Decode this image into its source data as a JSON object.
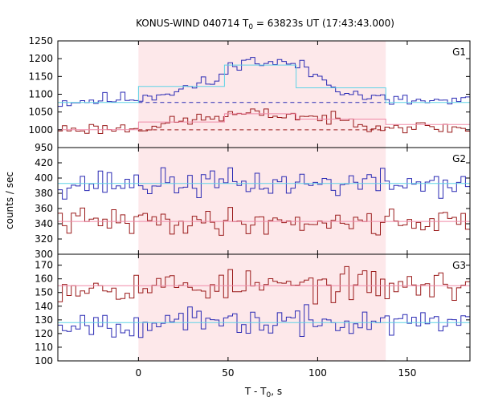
{
  "chart_data": {
    "type": "line",
    "title": "KONUS-WIND 040714 T",
    "title_sub": "0",
    "title_rest": " = 63823s UT (17:43:43.000)",
    "xlabel": "T - T",
    "xlabel_sub": "0",
    "xlabel_rest": ", s",
    "ylabel": "counts / sec",
    "xlim": [
      -45,
      185
    ],
    "xticks": [
      0,
      50,
      100,
      150
    ],
    "interval": {
      "start": 0,
      "end": 138,
      "color": "#fde8ea"
    },
    "colors": {
      "blue": "#2a2ab4",
      "red": "#9a1a1a",
      "cyan": "#5fd3e6",
      "pink": "#f08aa8"
    },
    "panels": [
      {
        "label": "G1",
        "ylim": [
          950,
          1250
        ],
        "yticks": [
          950,
          1000,
          1050,
          1100,
          1150,
          1200,
          1250
        ],
        "series": [
          {
            "color": "blue",
            "base": 1078,
            "noise": 14,
            "seed": 11,
            "profile": [
              [
                -45,
                1078
              ],
              [
                0,
                1090
              ],
              [
                20,
                1110
              ],
              [
                45,
                1140
              ],
              [
                55,
                1195
              ],
              [
                70,
                1190
              ],
              [
                88,
                1185
              ],
              [
                100,
                1150
              ],
              [
                120,
                1100
              ],
              [
                140,
                1082
              ],
              [
                185,
                1078
              ]
            ]
          },
          {
            "color": "red",
            "base": 1000,
            "noise": 12,
            "seed": 23,
            "profile": [
              [
                -45,
                1002
              ],
              [
                0,
                1005
              ],
              [
                25,
                1025
              ],
              [
                60,
                1045
              ],
              [
                90,
                1040
              ],
              [
                115,
                1025
              ],
              [
                140,
                1010
              ],
              [
                185,
                1003
              ]
            ]
          }
        ],
        "fits": [
          {
            "color": "cyan",
            "steps": [
              [
                -45,
                0,
                1077
              ],
              [
                0,
                48,
                1122
              ],
              [
                48,
                88,
                1182
              ],
              [
                88,
                138,
                1118
              ],
              [
                138,
                185,
                1077
              ]
            ]
          },
          {
            "color": "pink",
            "steps": [
              [
                -45,
                0,
                1000
              ],
              [
                0,
                48,
                1022
              ],
              [
                48,
                88,
                1045
              ],
              [
                88,
                138,
                1030
              ],
              [
                138,
                185,
                1015
              ]
            ]
          }
        ],
        "dashed": [
          {
            "color": "blue",
            "value": 1077,
            "from": 0,
            "to": 138
          },
          {
            "color": "red",
            "value": 1000,
            "from": 0,
            "to": 138
          }
        ]
      },
      {
        "label": "G2",
        "ylim": [
          300,
          440
        ],
        "yticks": [
          300,
          320,
          340,
          360,
          380,
          400,
          420
        ],
        "series": [
          {
            "color": "blue",
            "base": 393,
            "noise": 13,
            "seed": 37,
            "profile": [
              [
                -45,
                393
              ],
              [
                185,
                393
              ]
            ]
          },
          {
            "color": "red",
            "base": 343,
            "noise": 12,
            "seed": 41,
            "profile": [
              [
                -45,
                343
              ],
              [
                185,
                343
              ]
            ]
          }
        ],
        "fits": [
          {
            "color": "cyan",
            "steps": [
              [
                -45,
                185,
                393
              ]
            ]
          },
          {
            "color": "pink",
            "steps": [
              [
                -45,
                185,
                343
              ]
            ]
          }
        ],
        "dashed": []
      },
      {
        "label": "G3",
        "ylim": [
          100,
          178
        ],
        "yticks": [
          100,
          110,
          120,
          130,
          140,
          150,
          160,
          170
        ],
        "series": [
          {
            "color": "red",
            "base": 155,
            "noise": 8,
            "seed": 53,
            "profile": [
              [
                -45,
                155
              ],
              [
                185,
                155
              ]
            ]
          },
          {
            "color": "blue",
            "base": 128,
            "noise": 7,
            "seed": 67,
            "profile": [
              [
                -45,
                128
              ],
              [
                185,
                128
              ]
            ]
          }
        ],
        "fits": [
          {
            "color": "pink",
            "steps": [
              [
                -45,
                185,
                155
              ]
            ]
          },
          {
            "color": "cyan",
            "steps": [
              [
                -45,
                185,
                128
              ]
            ]
          }
        ],
        "dashed": []
      }
    ]
  }
}
